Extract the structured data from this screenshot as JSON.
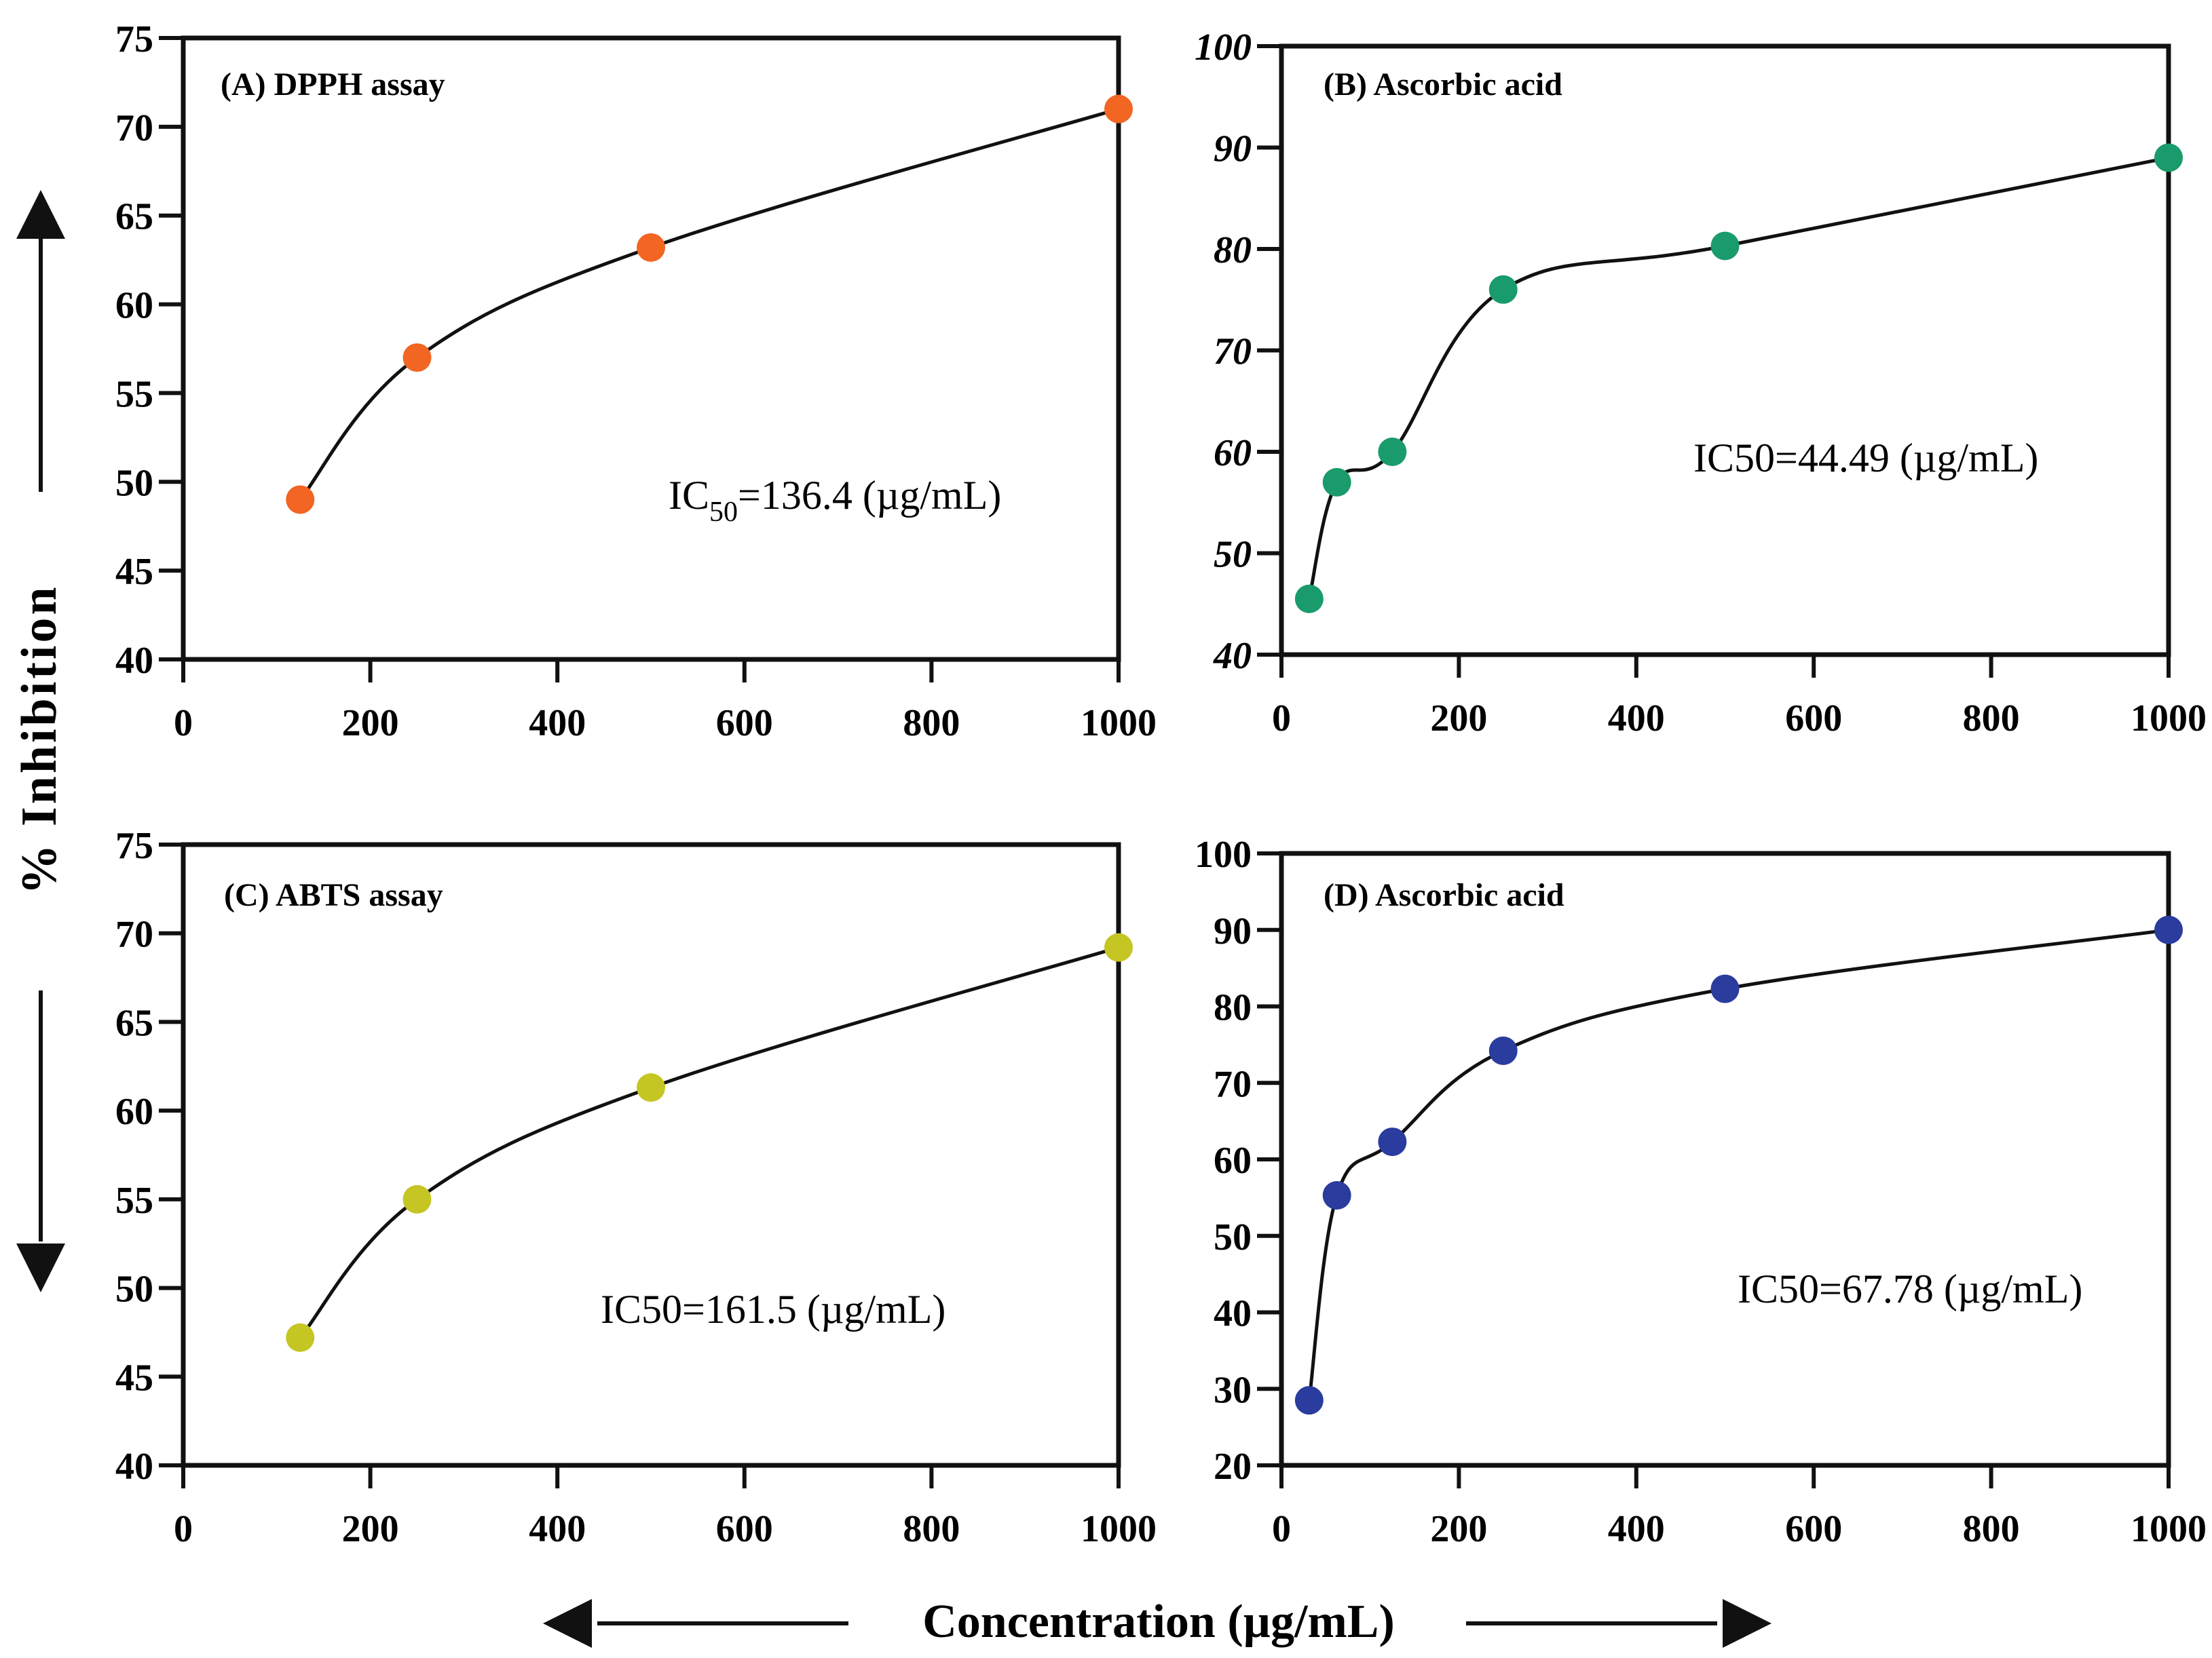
{
  "figure": {
    "y_axis_label": "% Inhibition",
    "x_axis_label": "Concentration (µg/mL)"
  },
  "chart_data": [
    {
      "type": "scatter",
      "title": "(A) DPPH assay",
      "annotation": {
        "prefix": "IC",
        "subscript": "50",
        "suffix": "=136.4 (µg/mL)"
      },
      "xlim": [
        0,
        1000
      ],
      "xticks": [
        0,
        200,
        400,
        600,
        800,
        1000
      ],
      "ylim": [
        40,
        75
      ],
      "yticks": [
        40,
        45,
        50,
        55,
        60,
        65,
        70,
        75
      ],
      "italic_ticks": false,
      "color": "#F26522",
      "x": [
        125,
        250,
        500,
        1000
      ],
      "y": [
        49,
        57,
        63.2,
        71
      ],
      "fit": {
        "a": 75.0,
        "b": -165.0,
        "c": 1.0,
        "x0": 125
      }
    },
    {
      "type": "scatter",
      "title": "(B) Ascorbic acid",
      "annotation": {
        "prefix": "IC50=44.49 (µg/mL)",
        "subscript": "",
        "suffix": ""
      },
      "xlim": [
        0,
        1000
      ],
      "xticks": [
        0,
        200,
        400,
        600,
        800,
        1000
      ],
      "ylim": [
        40,
        100
      ],
      "yticks": [
        40,
        50,
        60,
        70,
        80,
        90,
        100
      ],
      "italic_ticks": true,
      "color": "#1A9B6C",
      "x": [
        31.25,
        62.5,
        125,
        250,
        500,
        1000
      ],
      "y": [
        45.5,
        57,
        60,
        76,
        80.3,
        89
      ],
      "fit": {
        "a": 90.0,
        "b": -1.14,
        "c": 0.0,
        "x0": 38
      }
    },
    {
      "type": "scatter",
      "title": "(C) ABTS assay",
      "annotation": {
        "prefix": "IC50=161.5 (µg/mL)",
        "subscript": "",
        "suffix": ""
      },
      "xlim": [
        0,
        1000
      ],
      "xticks": [
        0,
        200,
        400,
        600,
        800,
        1000
      ],
      "ylim": [
        40,
        75
      ],
      "yticks": [
        40,
        45,
        50,
        55,
        60,
        65,
        70,
        75
      ],
      "italic_ticks": false,
      "color": "#C5C524",
      "x": [
        125,
        250,
        500,
        1000
      ],
      "y": [
        47.2,
        55,
        61.3,
        69.2
      ],
      "fit": {
        "a": 76.0,
        "b": -175.0,
        "c": 1.0,
        "x0": 125
      }
    },
    {
      "type": "scatter",
      "title": "(D) Ascorbic acid",
      "annotation": {
        "prefix": "IC50=67.78 (µg/mL)",
        "subscript": "",
        "suffix": ""
      },
      "xlim": [
        0,
        1000
      ],
      "xticks": [
        0,
        200,
        400,
        600,
        800,
        1000
      ],
      "ylim": [
        20,
        100
      ],
      "yticks": [
        20,
        30,
        40,
        50,
        60,
        70,
        80,
        90,
        100
      ],
      "italic_ticks": false,
      "color": "#2A3C9E",
      "x": [
        31.25,
        62.5,
        125,
        250,
        500,
        1000
      ],
      "y": [
        28.5,
        55.3,
        62.3,
        74.2,
        82.3,
        90
      ],
      "fit": {
        "a": 95.0,
        "b": -1.5,
        "c": 0.0,
        "x0": 31.25
      }
    }
  ]
}
